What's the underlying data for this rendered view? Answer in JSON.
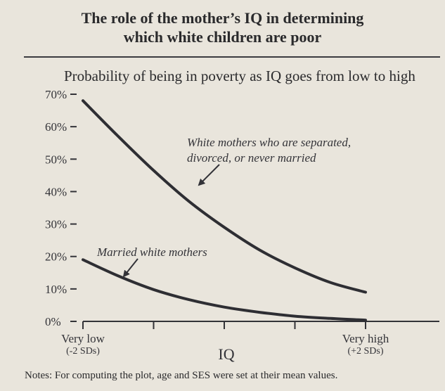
{
  "header": {
    "title_line1": "The role of the mother’s IQ in determining",
    "title_line2": "which white children are poor"
  },
  "chart_data": {
    "type": "line",
    "subtitle": "Probability of being in poverty as IQ goes from low to high",
    "xlabel": "IQ",
    "ylabel": "",
    "x_ticks": [
      {
        "x": -2,
        "label1": "Very low",
        "label2": "(-2 SDs)"
      },
      {
        "x": -1,
        "label1": "",
        "label2": ""
      },
      {
        "x": 0,
        "label1": "",
        "label2": ""
      },
      {
        "x": 1,
        "label1": "",
        "label2": ""
      },
      {
        "x": 2,
        "label1": "Very high",
        "label2": "(+2 SDs)"
      }
    ],
    "xlim": [
      -2,
      2
    ],
    "ylim": [
      0,
      70
    ],
    "y_ticks": [
      0,
      10,
      20,
      30,
      40,
      50,
      60,
      70
    ],
    "y_tick_labels": [
      "0%",
      "10%",
      "20%",
      "30%",
      "40%",
      "50%",
      "60%",
      "70%"
    ],
    "grid": false,
    "series": [
      {
        "name": "White mothers who are separated, divorced, or never married",
        "label_line1": "White mothers who are separated,",
        "label_line2": "divorced, or never married",
        "x": [
          -2,
          -1.5,
          -1,
          -0.5,
          0,
          0.5,
          1,
          1.5,
          2
        ],
        "values": [
          68,
          57,
          46.5,
          37,
          29,
          22,
          16.5,
          12,
          9
        ]
      },
      {
        "name": "Married white mothers",
        "label_line1": "Married white mothers",
        "x": [
          -2,
          -1.5,
          -1,
          -0.5,
          0,
          0.5,
          1,
          1.5,
          2
        ],
        "values": [
          19,
          14,
          9.8,
          6.7,
          4.4,
          2.8,
          1.6,
          0.9,
          0.4
        ]
      }
    ]
  },
  "notes": "Notes: For computing the plot, age and SES were set at their mean values."
}
